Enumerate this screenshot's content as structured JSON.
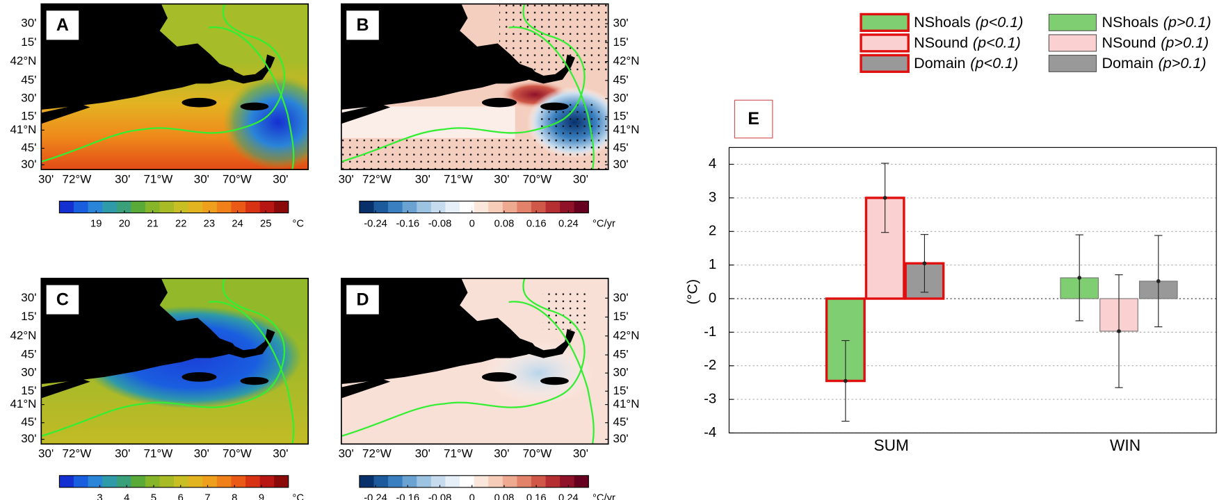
{
  "maps": [
    {
      "label": "A",
      "colorbar": 0,
      "lat_side": "left",
      "style": "sst_sum"
    },
    {
      "label": "B",
      "colorbar": 1,
      "lat_side": "right",
      "style": "trend_sum"
    },
    {
      "label": "C",
      "colorbar": 2,
      "lat_side": "left",
      "style": "sst_win"
    },
    {
      "label": "D",
      "colorbar": 1,
      "lat_side": "right",
      "style": "trend_win"
    }
  ],
  "map_axes": {
    "lat_labels": [
      "30'",
      "15'",
      "42°N",
      "45'",
      "30'",
      "15'",
      "41°N",
      "45'",
      "30'"
    ],
    "lon_labels": [
      "30'",
      "72°W",
      "30'",
      "71°W",
      "30'",
      "70°W",
      "30'"
    ]
  },
  "colorbars": [
    {
      "ticks": [
        19,
        20,
        21,
        22,
        23,
        24,
        25
      ],
      "range": [
        17.7,
        25.8
      ],
      "unit": "°C",
      "colors": [
        "#1530d0",
        "#1a5ee0",
        "#2a84d8",
        "#2f9aa8",
        "#3aa07a",
        "#5aaa3a",
        "#86b52a",
        "#a8bb26",
        "#c8bf24",
        "#e2b420",
        "#eea01c",
        "#f0801a",
        "#ea5a16",
        "#d83214",
        "#b81612",
        "#8a0a0a"
      ]
    },
    {
      "ticks": [
        -0.24,
        -0.16,
        -0.08,
        0,
        0.08,
        0.16,
        0.24
      ],
      "range": [
        -0.28,
        0.29
      ],
      "unit": "°C/yr",
      "colors": [
        "#08306b",
        "#1c5a9c",
        "#3a7fbf",
        "#6aa3d2",
        "#9cc3e2",
        "#c6dcee",
        "#e6eff7",
        "#ffffff",
        "#fbe6dc",
        "#f6cdb8",
        "#eeaa90",
        "#e2826a",
        "#cf5848",
        "#b52e32",
        "#8f1228",
        "#67001f"
      ]
    },
    {
      "ticks": [
        3,
        4,
        5,
        6,
        7,
        8,
        9
      ],
      "range": [
        1.5,
        10
      ],
      "unit": "°C",
      "colors": [
        "#1530d0",
        "#1a5ee0",
        "#2a84d8",
        "#2f9aa8",
        "#3aa07a",
        "#5aaa3a",
        "#86b52a",
        "#a8bb26",
        "#c8bf24",
        "#e2b420",
        "#eea01c",
        "#f0801a",
        "#ea5a16",
        "#d83214",
        "#b81612",
        "#8a0a0a"
      ]
    }
  ],
  "chart_data": {
    "type": "bar",
    "label": "E",
    "ylabel": "(°C)",
    "categories": [
      "SUM",
      "WIN"
    ],
    "category_significance": [
      0,
      1
    ],
    "significance": [
      {
        "label": "(p<0.1)",
        "outline": "#e01010"
      },
      {
        "label": "(p>0.1)",
        "outline": "#555555"
      }
    ],
    "series": [
      {
        "name": "NShoals",
        "color": "#7fcf72",
        "values": [
          -2.45,
          0.62
        ],
        "errors": [
          1.2,
          1.28
        ]
      },
      {
        "name": "NSound",
        "color": "#fbd0d0",
        "values": [
          3.0,
          -0.97
        ],
        "errors": [
          1.03,
          1.68
        ]
      },
      {
        "name": "Domain",
        "color": "#999999",
        "values": [
          1.05,
          0.52
        ],
        "errors": [
          0.86,
          1.36
        ]
      }
    ],
    "ylim": [
      -4,
      4.5
    ],
    "yticks": [
      -4,
      -3,
      -2,
      -1,
      0,
      1,
      2,
      3,
      4
    ],
    "grid": true
  }
}
